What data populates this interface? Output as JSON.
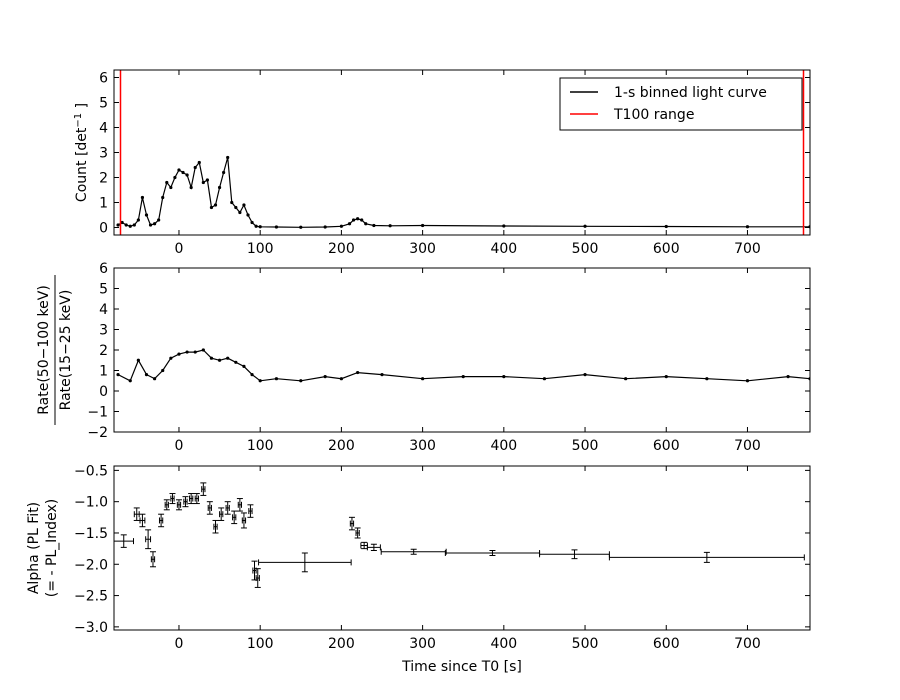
{
  "chart_data": [
    {
      "type": "line",
      "ylabel": "Count [det$^{-1}$ ]",
      "ylabel_parts": {
        "main": "Count [det",
        "sup": "−1",
        "tail": "]"
      },
      "xlim": [
        -80,
        777
      ],
      "ylim": [
        -0.3,
        6.3
      ],
      "xticks": [
        0,
        100,
        200,
        300,
        400,
        500,
        600,
        700
      ],
      "yticks": [
        0,
        1,
        2,
        3,
        4,
        5,
        6
      ],
      "legend": {
        "position": "top-right",
        "entries": [
          {
            "label": "1-s binned light curve",
            "color": "#000000"
          },
          {
            "label": "T100 range",
            "color": "#ff0000"
          }
        ]
      },
      "vlines": [
        -72,
        769
      ],
      "vline_color": "#ff0000",
      "series": [
        {
          "name": "1-s binned light curve",
          "x": [
            -75,
            -70,
            -65,
            -60,
            -55,
            -50,
            -45,
            -40,
            -35,
            -30,
            -25,
            -20,
            -15,
            -10,
            -5,
            0,
            5,
            10,
            15,
            20,
            25,
            30,
            35,
            40,
            45,
            50,
            55,
            60,
            65,
            70,
            75,
            80,
            85,
            90,
            95,
            100,
            120,
            150,
            180,
            200,
            210,
            215,
            220,
            225,
            230,
            240,
            260,
            300,
            400,
            500,
            600,
            700,
            777
          ],
          "y": [
            0.1,
            0.2,
            0.1,
            0.05,
            0.1,
            0.3,
            1.2,
            0.5,
            0.1,
            0.15,
            0.3,
            1.2,
            1.8,
            1.6,
            2.0,
            2.3,
            2.2,
            2.1,
            1.6,
            2.4,
            2.6,
            1.8,
            1.9,
            0.8,
            0.9,
            1.6,
            2.2,
            2.8,
            1.0,
            0.8,
            0.6,
            0.9,
            0.5,
            0.2,
            0.05,
            0.03,
            0.02,
            0.01,
            0.02,
            0.05,
            0.15,
            0.3,
            0.35,
            0.3,
            0.15,
            0.08,
            0.07,
            0.08,
            0.06,
            0.05,
            0.04,
            0.03,
            0.03
          ]
        }
      ]
    },
    {
      "type": "line",
      "ylabel_parts": {
        "num": "Rate(50−100 keV)",
        "den": "Rate(15−25 keV)"
      },
      "xlim": [
        -80,
        777
      ],
      "ylim": [
        -2,
        6
      ],
      "xticks": [
        0,
        100,
        200,
        300,
        400,
        500,
        600,
        700
      ],
      "yticks": [
        -2,
        -1,
        0,
        1,
        2,
        3,
        4,
        5,
        6
      ],
      "series": [
        {
          "name": "hardness ratio",
          "x": [
            -75,
            -60,
            -50,
            -40,
            -30,
            -20,
            -10,
            0,
            10,
            20,
            30,
            40,
            50,
            60,
            70,
            80,
            90,
            100,
            120,
            150,
            180,
            200,
            220,
            250,
            300,
            350,
            400,
            450,
            500,
            550,
            600,
            650,
            700,
            750,
            777
          ],
          "y": [
            0.8,
            0.5,
            1.5,
            0.8,
            0.6,
            1.0,
            1.6,
            1.8,
            1.9,
            1.9,
            2.0,
            1.6,
            1.5,
            1.6,
            1.4,
            1.2,
            0.8,
            0.5,
            0.6,
            0.5,
            0.7,
            0.6,
            0.9,
            0.8,
            0.6,
            0.7,
            0.7,
            0.6,
            0.8,
            0.6,
            0.7,
            0.6,
            0.5,
            0.7,
            0.6
          ]
        }
      ]
    },
    {
      "type": "scatter",
      "xlabel": "Time since T0 [s]",
      "ylabel_lines": [
        "Alpha (PL Fit)",
        "(= - PL_Index)"
      ],
      "xlim": [
        -80,
        777
      ],
      "ylim": [
        -3.05,
        -0.43
      ],
      "xticks": [
        0,
        100,
        200,
        300,
        400,
        500,
        600,
        700
      ],
      "yticks": [
        -3.0,
        -2.5,
        -2.0,
        -1.5,
        -1.0,
        -0.5
      ],
      "ytick_labels": [
        "−3.0",
        "−2.5",
        "−2.0",
        "−1.5",
        "−1.0",
        "−0.5"
      ],
      "series": [
        {
          "name": "alpha",
          "points": [
            [
              -68,
              -1.63,
              12,
              0.1
            ],
            [
              -52,
              -1.2,
              3,
              0.1
            ],
            [
              -45,
              -1.3,
              3,
              0.1
            ],
            [
              -38,
              -1.6,
              3,
              0.15
            ],
            [
              -32,
              -1.92,
              2,
              0.12
            ],
            [
              -22,
              -1.3,
              2,
              0.1
            ],
            [
              -15,
              -1.05,
              2,
              0.08
            ],
            [
              -8,
              -0.95,
              2,
              0.08
            ],
            [
              0,
              -1.05,
              2,
              0.08
            ],
            [
              8,
              -1.0,
              2,
              0.08
            ],
            [
              15,
              -0.95,
              2,
              0.08
            ],
            [
              22,
              -0.95,
              2,
              0.08
            ],
            [
              30,
              -0.8,
              2,
              0.1
            ],
            [
              38,
              -1.1,
              2,
              0.1
            ],
            [
              45,
              -1.4,
              2,
              0.1
            ],
            [
              52,
              -1.2,
              2,
              0.1
            ],
            [
              60,
              -1.1,
              2,
              0.1
            ],
            [
              68,
              -1.25,
              2,
              0.1
            ],
            [
              75,
              -1.05,
              2,
              0.1
            ],
            [
              80,
              -1.3,
              2,
              0.12
            ],
            [
              88,
              -1.15,
              2,
              0.1
            ],
            [
              93,
              -2.1,
              2,
              0.15
            ],
            [
              97,
              -2.22,
              2,
              0.15
            ],
            [
              155,
              -1.97,
              57,
              0.15
            ],
            [
              213,
              -1.35,
              2,
              0.1
            ],
            [
              220,
              -1.5,
              2,
              0.08
            ],
            [
              228,
              -1.7,
              4,
              0.05
            ],
            [
              240,
              -1.73,
              8,
              0.05
            ],
            [
              289,
              -1.8,
              40,
              0.04
            ],
            [
              386,
              -1.82,
              58,
              0.04
            ],
            [
              487,
              -1.84,
              43,
              0.07
            ],
            [
              650,
              -1.89,
              120,
              0.08
            ]
          ]
        }
      ]
    }
  ]
}
